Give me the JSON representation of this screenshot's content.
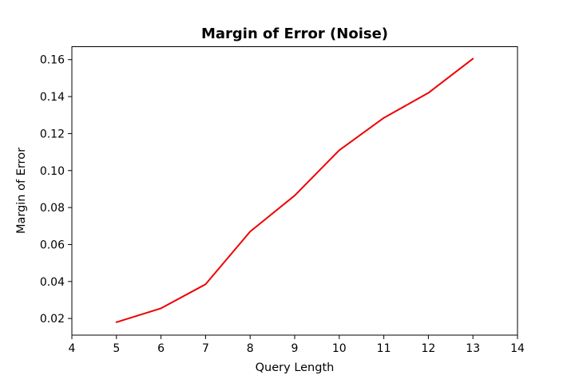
{
  "chart_data": {
    "type": "line",
    "title": "Margin of Error (Noise)",
    "xlabel": "Query Length",
    "ylabel": "Margin of Error",
    "xlim": [
      4,
      14
    ],
    "ylim": [
      0.011,
      0.167
    ],
    "xticks": [
      4,
      5,
      6,
      7,
      8,
      9,
      10,
      11,
      12,
      13,
      14
    ],
    "yticks": [
      0.02,
      0.04,
      0.06,
      0.08,
      0.1,
      0.12,
      0.14,
      0.16
    ],
    "ytick_labels": [
      "0.02",
      "0.04",
      "0.06",
      "0.08",
      "0.10",
      "0.12",
      "0.14",
      "0.16"
    ],
    "grid": false,
    "series": [
      {
        "color": "#ee0000",
        "x": [
          5,
          6,
          7,
          8,
          9,
          10,
          11,
          12,
          13
        ],
        "y": [
          0.018,
          0.0255,
          0.0385,
          0.067,
          0.0865,
          0.111,
          0.1285,
          0.142,
          0.1605
        ]
      }
    ]
  }
}
